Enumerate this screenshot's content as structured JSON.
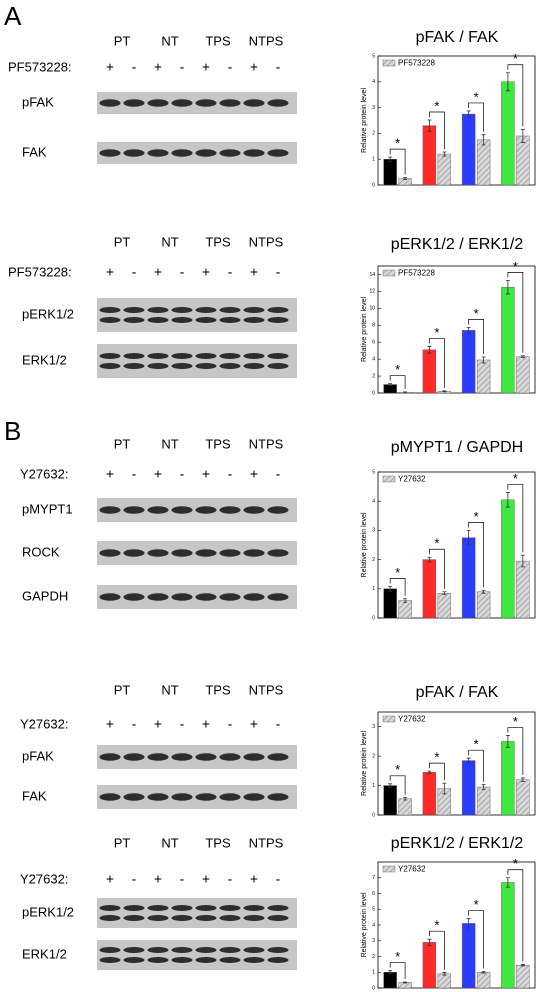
{
  "panel_labels": [
    "A",
    "B"
  ],
  "blots": [
    {
      "groups": [
        "PT",
        "NT",
        "TPS",
        "NTPS"
      ],
      "treatment": "PF573228:",
      "signs": [
        "+",
        "-",
        "+",
        "-",
        "+",
        "-",
        "+",
        "-"
      ],
      "rows": [
        "pFAK",
        "FAK"
      ]
    },
    {
      "groups": [
        "PT",
        "NT",
        "TPS",
        "NTPS"
      ],
      "treatment": "PF573228:",
      "signs": [
        "+",
        "-",
        "+",
        "-",
        "+",
        "-",
        "+",
        "-"
      ],
      "rows": [
        "pERK1/2",
        "ERK1/2"
      ]
    },
    {
      "groups": [
        "PT",
        "NT",
        "TPS",
        "NTPS"
      ],
      "treatment": "Y27632:",
      "signs": [
        "+",
        "-",
        "+",
        "-",
        "+",
        "-",
        "+",
        "-"
      ],
      "rows": [
        "pMYPT1",
        "ROCK",
        "GAPDH"
      ]
    },
    {
      "groups": [
        "PT",
        "NT",
        "TPS",
        "NTPS"
      ],
      "treatment": "Y27632:",
      "signs": [
        "+",
        "-",
        "+",
        "-",
        "+",
        "-",
        "+",
        "-"
      ],
      "rows": [
        "pFAK",
        "FAK"
      ]
    },
    {
      "groups": [
        "PT",
        "NT",
        "TPS",
        "NTPS"
      ],
      "treatment": "Y27632:",
      "signs": [
        "+",
        "-",
        "+",
        "-",
        "+",
        "-",
        "+",
        "-"
      ],
      "rows": [
        "pERK1/2",
        "ERK1/2"
      ]
    }
  ],
  "chart_data": [
    {
      "type": "bar",
      "title": "pFAK / FAK",
      "ylabel": "Relative protein level",
      "ylim": [
        0,
        5
      ],
      "yticks": [
        0,
        1,
        2,
        3,
        4,
        5
      ],
      "annotation": "*",
      "series": [
        {
          "colors": [
            "#000000",
            "#ff2a2a",
            "#2a3cff",
            "#3ee83e"
          ],
          "values": [
            1.0,
            2.3,
            2.75,
            4.0
          ],
          "errors": [
            0.08,
            0.22,
            0.12,
            0.35
          ]
        },
        {
          "name": "PF573228",
          "color": "#c4c4c4",
          "pattern": "hatch",
          "values": [
            0.25,
            1.2,
            1.75,
            1.9
          ],
          "errors": [
            0.04,
            0.08,
            0.2,
            0.25
          ]
        }
      ]
    },
    {
      "type": "bar",
      "title": "pERK1/2 / ERK1/2",
      "ylabel": "Relative protein level",
      "ylim": [
        0,
        15
      ],
      "yticks": [
        0,
        2,
        4,
        6,
        8,
        10,
        12,
        14
      ],
      "annotation": "*",
      "series": [
        {
          "colors": [
            "#000000",
            "#ff2a2a",
            "#2a3cff",
            "#3ee83e"
          ],
          "values": [
            1.0,
            5.1,
            7.4,
            12.5
          ],
          "errors": [
            0.1,
            0.4,
            0.35,
            0.8
          ]
        },
        {
          "name": "PF573228",
          "color": "#c4c4c4",
          "pattern": "hatch",
          "values": [
            0.1,
            0.2,
            3.9,
            4.3
          ],
          "errors": [
            0.03,
            0.05,
            0.35,
            0.1
          ]
        }
      ]
    },
    {
      "type": "bar",
      "title": "pMYPT1 / GAPDH",
      "ylabel": "Relative protein level",
      "ylim": [
        0,
        5
      ],
      "yticks": [
        0,
        1,
        2,
        3,
        4,
        5
      ],
      "annotation": "*",
      "series": [
        {
          "colors": [
            "#000000",
            "#ff2a2a",
            "#2a3cff",
            "#3ee83e"
          ],
          "values": [
            1.0,
            2.0,
            2.75,
            4.05
          ],
          "errors": [
            0.08,
            0.08,
            0.25,
            0.25
          ]
        },
        {
          "name": "Y27632",
          "color": "#c4c4c4",
          "pattern": "hatch",
          "values": [
            0.6,
            0.85,
            0.9,
            1.95
          ],
          "errors": [
            0.06,
            0.05,
            0.05,
            0.2
          ]
        }
      ]
    },
    {
      "type": "bar",
      "title": "pFAK / FAK",
      "ylabel": "Relative protein level",
      "ylim": [
        0,
        3.5
      ],
      "yticks": [
        0,
        1,
        2,
        3
      ],
      "annotation": "*",
      "series": [
        {
          "colors": [
            "#000000",
            "#ff2a2a",
            "#2a3cff",
            "#3ee83e"
          ],
          "values": [
            1.0,
            1.45,
            1.85,
            2.5
          ],
          "errors": [
            0.06,
            0.04,
            0.08,
            0.2
          ]
        },
        {
          "name": "Y27632",
          "color": "#c4c4c4",
          "pattern": "hatch",
          "values": [
            0.55,
            0.9,
            0.95,
            1.2
          ],
          "errors": [
            0.04,
            0.18,
            0.08,
            0.06
          ]
        }
      ]
    },
    {
      "type": "bar",
      "title": "pERK1/2 / ERK1/2",
      "ylabel": "Relative protein level",
      "ylim": [
        0,
        8
      ],
      "yticks": [
        0,
        1,
        2,
        3,
        4,
        5,
        6,
        7
      ],
      "annotation": "*",
      "series": [
        {
          "colors": [
            "#000000",
            "#ff2a2a",
            "#2a3cff",
            "#3ee83e"
          ],
          "values": [
            1.0,
            2.9,
            4.1,
            6.7
          ],
          "errors": [
            0.1,
            0.2,
            0.3,
            0.3
          ]
        },
        {
          "name": "Y27632",
          "color": "#c4c4c4",
          "pattern": "hatch",
          "values": [
            0.35,
            0.9,
            1.0,
            1.45
          ],
          "errors": [
            0.03,
            0.08,
            0.05,
            0.05
          ]
        }
      ]
    }
  ]
}
